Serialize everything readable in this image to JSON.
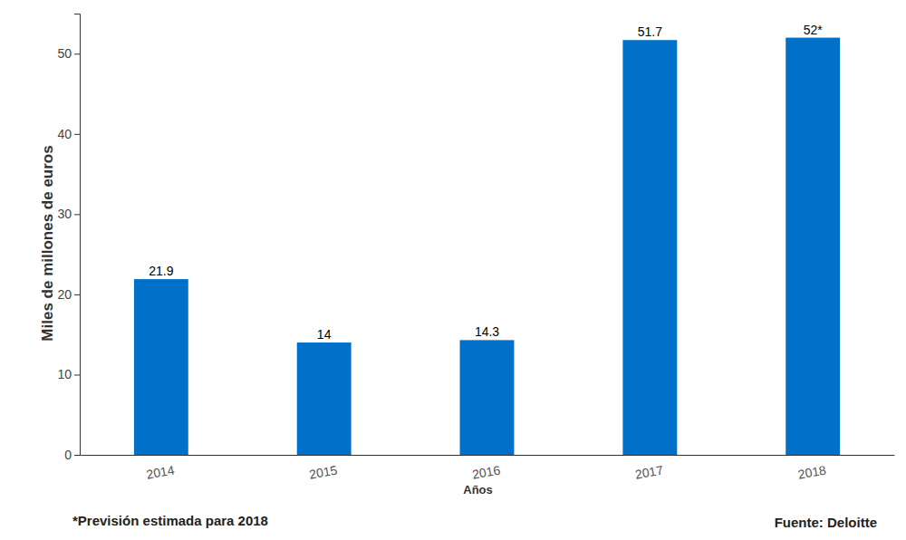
{
  "chart_data": {
    "type": "bar",
    "x_label": "Años",
    "y_label": "Miles de millones de euros",
    "categories": [
      "2014",
      "2015",
      "2016",
      "2017",
      "2018"
    ],
    "values": [
      21.9,
      14,
      14.3,
      51.7,
      52
    ],
    "value_labels": [
      "21.9",
      "14",
      "14.3",
      "51.7",
      "52*"
    ],
    "color": "#0070c8",
    "ylim": [
      0,
      55
    ],
    "yticks": [
      0,
      10,
      20,
      30,
      40,
      50
    ],
    "grid": false,
    "data_labels": true,
    "annotations": [
      "*Previsión estimada para 2018",
      "Fuente: Deloitte"
    ]
  }
}
